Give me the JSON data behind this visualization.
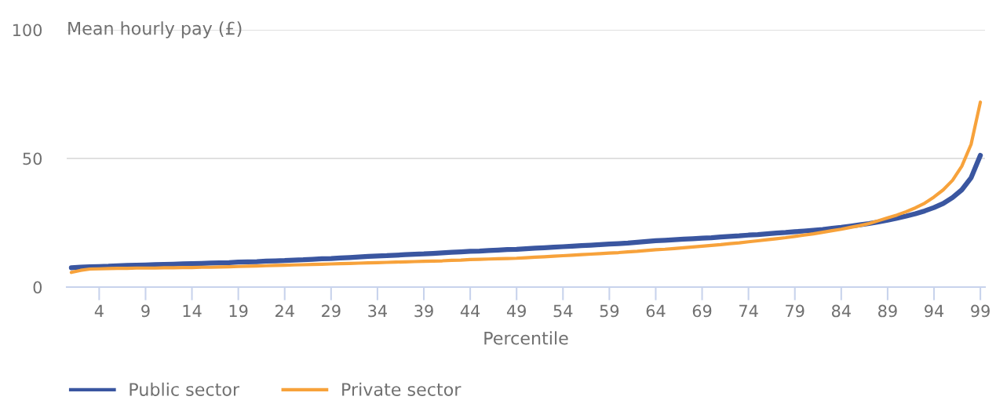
{
  "chart_data": {
    "type": "line",
    "ylabel": "Mean hourly pay (£)",
    "xlabel": "Percentile",
    "categories": [
      null,
      null,
      null,
      "4",
      null,
      null,
      null,
      null,
      "9",
      null,
      null,
      null,
      null,
      "14",
      null,
      null,
      null,
      null,
      "19",
      null,
      null,
      null,
      null,
      "24",
      null,
      null,
      null,
      null,
      "29",
      null,
      null,
      null,
      null,
      "34",
      null,
      null,
      null,
      null,
      "39",
      null,
      null,
      null,
      null,
      "44",
      null,
      null,
      null,
      null,
      "49",
      null,
      null,
      null,
      null,
      "54",
      null,
      null,
      null,
      null,
      "59",
      null,
      null,
      null,
      null,
      "64",
      null,
      null,
      null,
      null,
      "69",
      null,
      null,
      null,
      null,
      "74",
      null,
      null,
      null,
      null,
      "79",
      null,
      null,
      null,
      null,
      "84",
      null,
      null,
      null,
      null,
      "89",
      null,
      null,
      null,
      null,
      "94",
      null,
      null,
      null,
      null,
      "99"
    ],
    "series": [
      {
        "name": "Public sector",
        "color": "#3a56a0",
        "values": [
          7.5,
          7.7,
          7.9,
          8.0,
          8.1,
          8.3,
          8.4,
          8.5,
          8.6,
          8.7,
          8.8,
          8.9,
          9.0,
          9.1,
          9.2,
          9.3,
          9.4,
          9.5,
          9.7,
          9.8,
          9.9,
          10.1,
          10.2,
          10.3,
          10.5,
          10.6,
          10.8,
          11.0,
          11.1,
          11.3,
          11.5,
          11.7,
          11.9,
          12.1,
          12.2,
          12.4,
          12.6,
          12.8,
          12.9,
          13.1,
          13.3,
          13.5,
          13.7,
          13.9,
          14.0,
          14.2,
          14.4,
          14.6,
          14.7,
          14.9,
          15.1,
          15.3,
          15.5,
          15.7,
          15.9,
          16.1,
          16.3,
          16.5,
          16.7,
          16.9,
          17.1,
          17.4,
          17.7,
          18.0,
          18.2,
          18.4,
          18.6,
          18.8,
          19.0,
          19.2,
          19.5,
          19.7,
          19.9,
          20.2,
          20.4,
          20.7,
          21.0,
          21.2,
          21.5,
          21.8,
          22.1,
          22.4,
          22.8,
          23.2,
          23.7,
          24.2,
          24.7,
          25.3,
          26.0,
          26.8,
          27.6,
          28.5,
          29.6,
          30.9,
          32.5,
          34.8,
          37.8,
          42.5,
          51.2
        ]
      },
      {
        "name": "Private sector",
        "color": "#f7a23b",
        "values": [
          5.7,
          6.5,
          7.0,
          7.1,
          7.2,
          7.3,
          7.3,
          7.4,
          7.4,
          7.4,
          7.5,
          7.5,
          7.6,
          7.6,
          7.7,
          7.7,
          7.8,
          7.9,
          8.0,
          8.1,
          8.2,
          8.3,
          8.4,
          8.5,
          8.6,
          8.7,
          8.8,
          8.9,
          9.0,
          9.1,
          9.2,
          9.3,
          9.4,
          9.5,
          9.6,
          9.7,
          9.8,
          9.9,
          10.0,
          10.1,
          10.2,
          10.4,
          10.5,
          10.7,
          10.8,
          10.9,
          11.0,
          11.1,
          11.2,
          11.4,
          11.6,
          11.8,
          12.0,
          12.2,
          12.4,
          12.6,
          12.8,
          13.0,
          13.2,
          13.4,
          13.7,
          13.9,
          14.2,
          14.5,
          14.7,
          15.0,
          15.3,
          15.6,
          15.9,
          16.2,
          16.5,
          16.9,
          17.2,
          17.6,
          18.0,
          18.4,
          18.8,
          19.2,
          19.7,
          20.2,
          20.7,
          21.3,
          21.9,
          22.5,
          23.2,
          23.9,
          24.7,
          25.8,
          26.9,
          28.0,
          29.3,
          30.8,
          32.6,
          35.0,
          37.8,
          41.5,
          47.0,
          55.5,
          71.9
        ]
      }
    ],
    "ylim": [
      0,
      100
    ],
    "yticks": [
      0,
      50,
      100
    ],
    "grid": "y",
    "legend": "bottom left",
    "marker": "none",
    "line_style": "solid"
  }
}
